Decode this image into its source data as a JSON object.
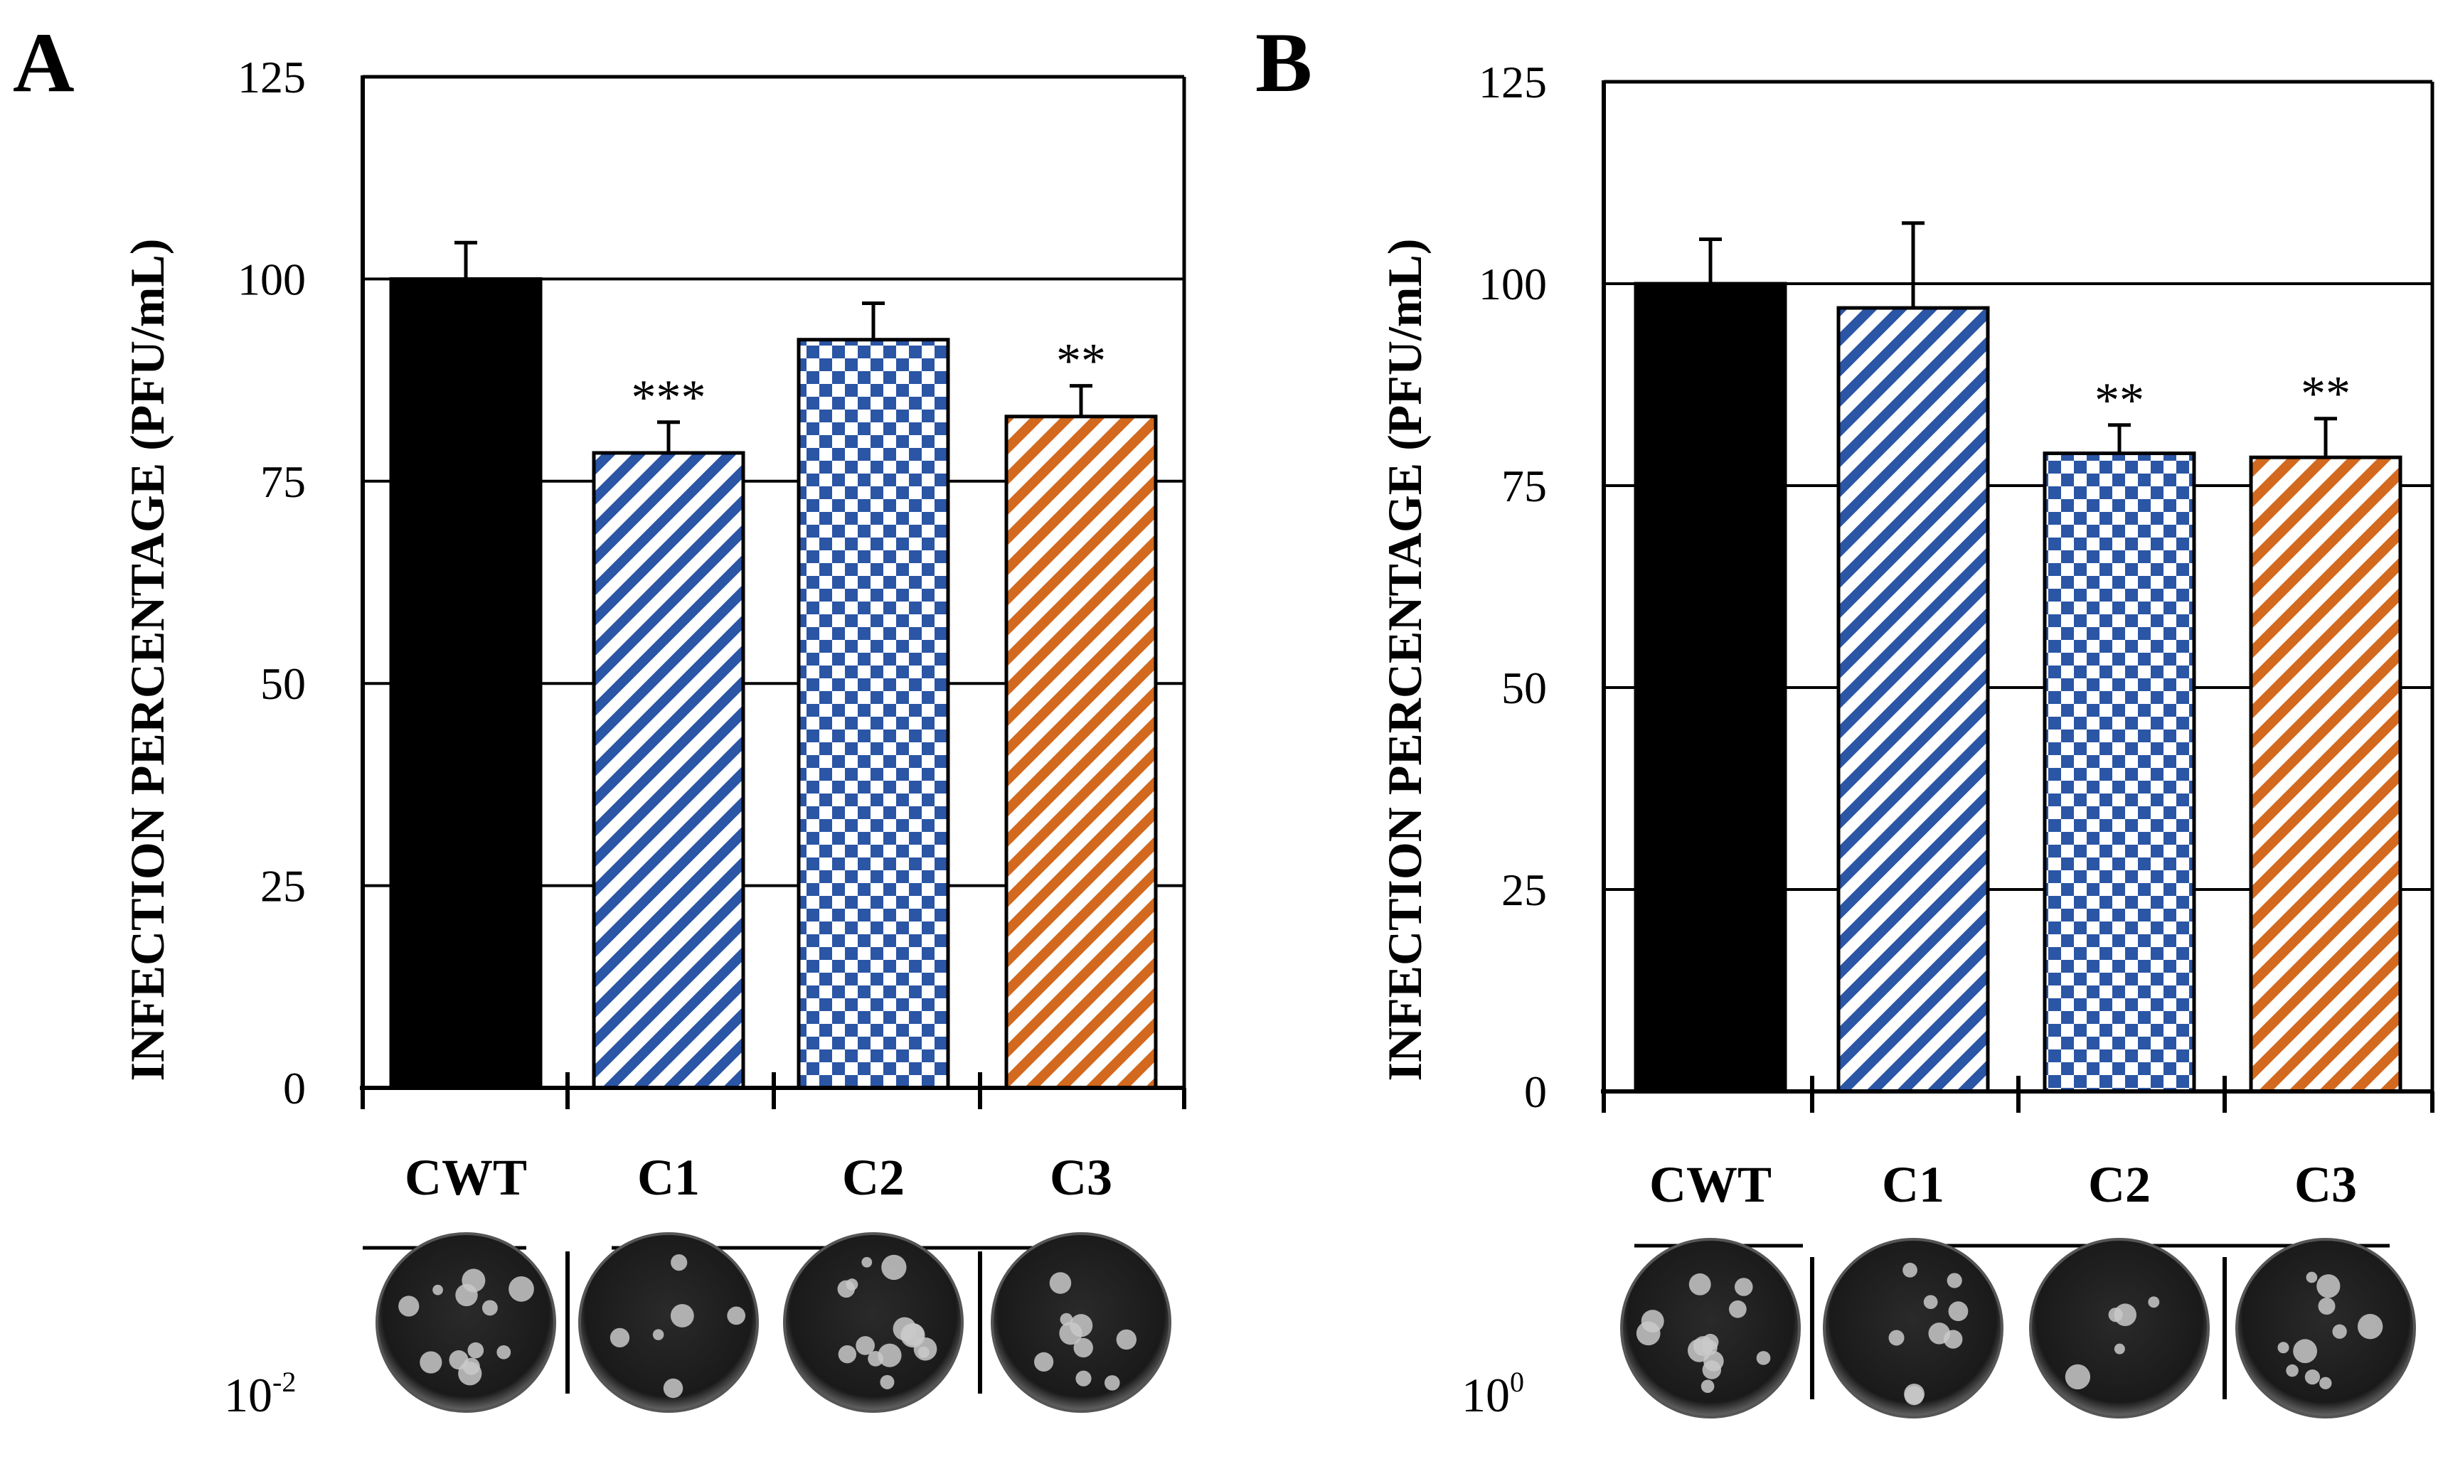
{
  "chart_data": [
    {
      "type": "bar",
      "panel": "A",
      "title": "",
      "xlabel": "",
      "ylabel": "INFECTION PERCENTAGE (PFU/mL)",
      "ylim": [
        0,
        125
      ],
      "yticks": [
        "0",
        "25",
        "50",
        "75",
        "100",
        "125"
      ],
      "grid": true,
      "categories": [
        "CWT",
        "C1",
        "C2",
        "C3"
      ],
      "values": [
        100,
        78.5,
        92.5,
        83
      ],
      "errors": [
        4.5,
        3.8,
        4.5,
        3.8
      ],
      "significance": [
        "",
        "***",
        "",
        "**"
      ],
      "patterns": [
        "solid",
        "diagonal",
        "checker",
        "diagonal"
      ],
      "colors": [
        "#000000",
        "#2b55a5",
        "#2b55a5",
        "#d2691e"
      ],
      "plate_dilution": {
        "base": "10",
        "exponent": "-2"
      }
    },
    {
      "type": "bar",
      "panel": "B",
      "title": "",
      "xlabel": "",
      "ylabel": "INFECTION PERCENTAGE (PFU/mL)",
      "ylim": [
        0,
        125
      ],
      "yticks": [
        "0",
        "25",
        "50",
        "75",
        "100",
        "125"
      ],
      "grid": true,
      "categories": [
        "CWT",
        "C1",
        "C2",
        "C3"
      ],
      "values": [
        100,
        97,
        79,
        78.5
      ],
      "errors": [
        5.5,
        10.5,
        3.5,
        4.8
      ],
      "significance": [
        "",
        "",
        "**",
        "**"
      ],
      "patterns": [
        "solid",
        "diagonal",
        "checker",
        "diagonal"
      ],
      "colors": [
        "#000000",
        "#2b55a5",
        "#2b55a5",
        "#d2691e"
      ],
      "plate_dilution": {
        "base": "10",
        "exponent": "0"
      }
    }
  ],
  "plates": {
    "A": [
      {
        "name": "CWT",
        "colonies": 12,
        "seed": 3
      },
      {
        "name": "C1",
        "colonies": 6,
        "seed": 7
      },
      {
        "name": "C2",
        "colonies": 14,
        "seed": 11
      },
      {
        "name": "C3",
        "colonies": 9,
        "seed": 19
      }
    ],
    "B": [
      {
        "name": "CWT",
        "colonies": 13,
        "seed": 23
      },
      {
        "name": "C1",
        "colonies": 9,
        "seed": 29
      },
      {
        "name": "C2",
        "colonies": 5,
        "seed": 31
      },
      {
        "name": "C3",
        "colonies": 10,
        "seed": 37
      }
    ]
  }
}
